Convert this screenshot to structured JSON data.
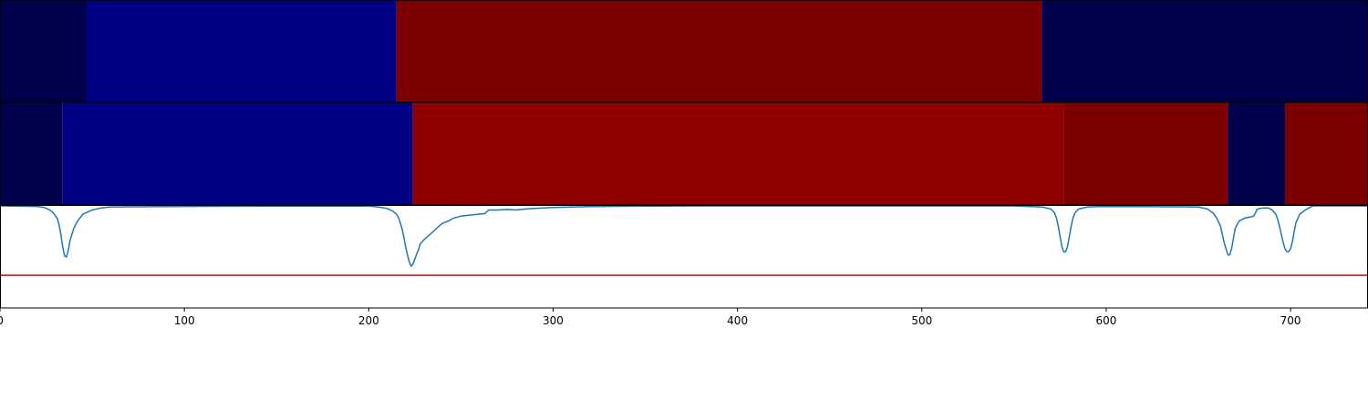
{
  "chart_data": {
    "type": "heatmap",
    "title": "",
    "xlabel": "",
    "ylabel": "",
    "xlim": [
      0,
      742
    ],
    "x_ticks": [
      {
        "value": 0,
        "label": "0"
      },
      {
        "value": 100,
        "label": "100"
      },
      {
        "value": 200,
        "label": "200"
      },
      {
        "value": 300,
        "label": "300"
      },
      {
        "value": 400,
        "label": "400"
      },
      {
        "value": 500,
        "label": "500"
      },
      {
        "value": 600,
        "label": "600"
      },
      {
        "value": 700,
        "label": "700"
      }
    ],
    "segment_rows": [
      {
        "segments": [
          {
            "start": 0,
            "end": 47,
            "color": "#00004c"
          },
          {
            "start": 47,
            "end": 215,
            "color": "#000084"
          },
          {
            "start": 215,
            "end": 565,
            "color": "#7c0000"
          },
          {
            "start": 565,
            "end": 742,
            "color": "#00004c"
          }
        ]
      },
      {
        "segments": [
          {
            "start": 0,
            "end": 34,
            "color": "#00004c"
          },
          {
            "start": 34,
            "end": 224,
            "color": "#000084"
          },
          {
            "start": 224,
            "end": 577,
            "color": "#900000"
          },
          {
            "start": 577,
            "end": 666,
            "color": "#7c0000"
          },
          {
            "start": 666,
            "end": 697,
            "color": "#00004c"
          },
          {
            "start": 697,
            "end": 742,
            "color": "#7c0000"
          }
        ]
      }
    ],
    "line_panel": {
      "ylim": [
        0,
        1
      ],
      "threshold": 0.32,
      "threshold_color": "#e00000",
      "series_color": "#1f77b4",
      "x": [
        0,
        20,
        24,
        27,
        29,
        31,
        32,
        33,
        34,
        35,
        36,
        37,
        38,
        40,
        42,
        45,
        50,
        55,
        60,
        100,
        150,
        200,
        205,
        210,
        213,
        215,
        216,
        217,
        218,
        219,
        220,
        221,
        222,
        223,
        224,
        225,
        226,
        227,
        228,
        230,
        232,
        235,
        238,
        240,
        243,
        246,
        250,
        255,
        260,
        263,
        265,
        270,
        275,
        280,
        285,
        290,
        300,
        320,
        350,
        400,
        450,
        500,
        550,
        565,
        570,
        572,
        573,
        574,
        575,
        576,
        577,
        578,
        579,
        580,
        581,
        582,
        583,
        585,
        590,
        600,
        650,
        655,
        658,
        660,
        662,
        663,
        664,
        665,
        666,
        667,
        668,
        669,
        670,
        672,
        675,
        678,
        680,
        682,
        685,
        688,
        690,
        692,
        693,
        694,
        695,
        696,
        697,
        698,
        699,
        700,
        701,
        702,
        703,
        705,
        708,
        710,
        712,
        742
      ],
      "y": [
        1.0,
        0.995,
        0.985,
        0.96,
        0.93,
        0.88,
        0.82,
        0.72,
        0.6,
        0.51,
        0.5,
        0.56,
        0.66,
        0.78,
        0.85,
        0.92,
        0.96,
        0.98,
        0.99,
        0.995,
        0.998,
        0.998,
        0.99,
        0.975,
        0.95,
        0.92,
        0.89,
        0.84,
        0.78,
        0.7,
        0.6,
        0.52,
        0.45,
        0.41,
        0.43,
        0.48,
        0.53,
        0.57,
        0.63,
        0.67,
        0.7,
        0.75,
        0.8,
        0.83,
        0.85,
        0.88,
        0.9,
        0.91,
        0.92,
        0.925,
        0.96,
        0.96,
        0.965,
        0.96,
        0.97,
        0.975,
        0.985,
        0.993,
        0.998,
        0.999,
        0.999,
        0.999,
        0.999,
        0.99,
        0.97,
        0.93,
        0.88,
        0.8,
        0.7,
        0.6,
        0.55,
        0.55,
        0.6,
        0.7,
        0.8,
        0.88,
        0.93,
        0.97,
        0.99,
        0.995,
        0.99,
        0.97,
        0.93,
        0.88,
        0.8,
        0.72,
        0.64,
        0.58,
        0.52,
        0.52,
        0.58,
        0.68,
        0.78,
        0.85,
        0.88,
        0.89,
        0.9,
        0.97,
        0.98,
        0.98,
        0.96,
        0.92,
        0.87,
        0.8,
        0.72,
        0.64,
        0.58,
        0.55,
        0.55,
        0.58,
        0.65,
        0.75,
        0.84,
        0.92,
        0.96,
        0.98,
        1.0,
        1.0
      ]
    }
  }
}
